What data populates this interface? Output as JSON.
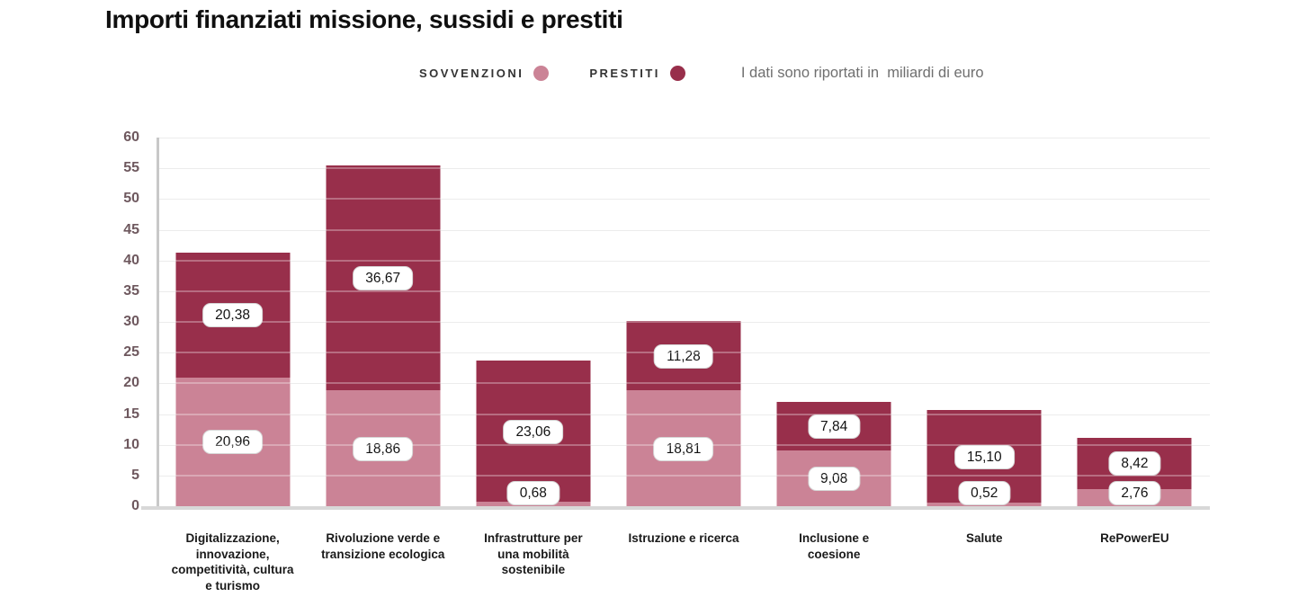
{
  "title": "Importi finanziati missione, sussidi e prestiti",
  "legend": {
    "sovvenzioni_label": "SOVVENZIONI",
    "prestiti_label": "PRESTITI",
    "note": "I dati sono riportati in  miliardi di euro"
  },
  "colors": {
    "sovvenzioni": "#CB8396",
    "prestiti": "#982F4B",
    "axis_label": "#6E585E",
    "grid": "#E4E4E4",
    "axis_line": "#C8C8C8",
    "baseline": "#D8D8D8",
    "note_text": "#6F6F6F",
    "legend_text": "#333333",
    "category_text": "#1A1A1A"
  },
  "chart_data": {
    "type": "bar",
    "stacked": true,
    "title": "Importi finanziati missione, sussidi e prestiti",
    "unit": "miliardi di euro",
    "grid": true,
    "legend_position": "top",
    "y_axis": {
      "min": 0,
      "max": 60,
      "step": 5
    },
    "categories": [
      "Digitalizzazione,\ninnovazione,\ncompetitività, cultura\ne turismo",
      "Rivoluzione verde e\ntransizione ecologica",
      "Infrastrutture per\nuna mobilità\nsostenibile",
      "Istruzione e ricerca",
      "Inclusione e\ncoesione",
      "Salute",
      "RePowerEU"
    ],
    "series": [
      {
        "name": "Sovvenzioni",
        "color_key": "sovvenzioni",
        "values": [
          20.96,
          18.86,
          0.68,
          18.81,
          9.08,
          0.52,
          2.76
        ],
        "labels": [
          "20,96",
          "18,86",
          "0,68",
          "18,81",
          "9,08",
          "0,52",
          "2,76"
        ]
      },
      {
        "name": "Prestiti",
        "color_key": "prestiti",
        "values": [
          20.38,
          36.67,
          23.06,
          11.28,
          7.84,
          15.1,
          8.42
        ],
        "labels": [
          "20,38",
          "36,67",
          "23,06",
          "11,28",
          "7,84",
          "15,10",
          "8,42"
        ]
      }
    ]
  }
}
